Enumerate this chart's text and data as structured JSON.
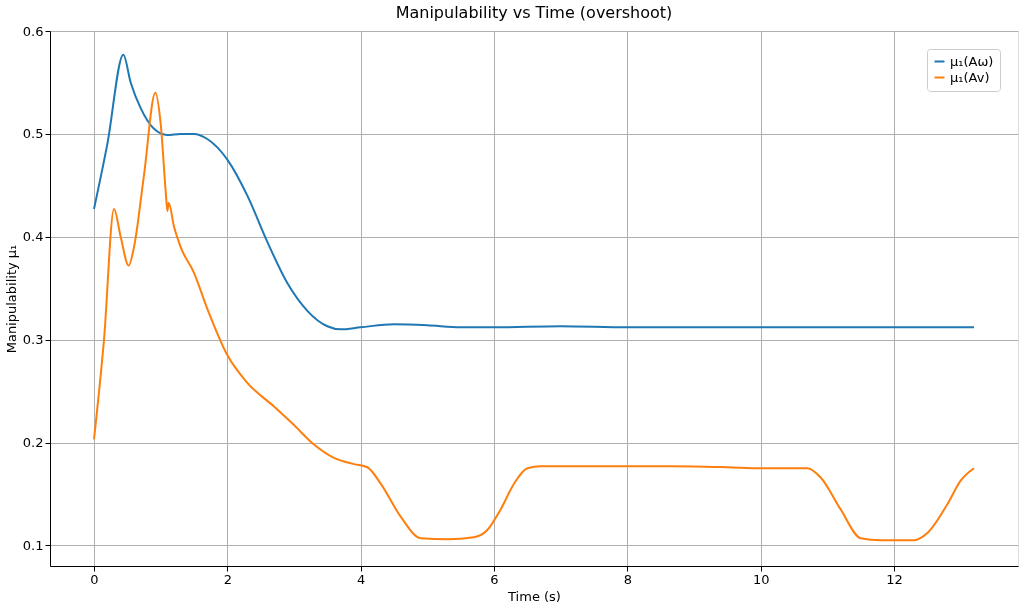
{
  "chart_data": {
    "type": "line",
    "title": "Manipulability vs Time  (overshoot)",
    "xlabel": "Time (s)",
    "ylabel": "Manipulability μ₁",
    "xlim": [
      -0.66,
      13.86
    ],
    "ylim": [
      0.08,
      0.6
    ],
    "xticks": [
      0,
      2,
      4,
      6,
      8,
      10,
      12
    ],
    "yticks": [
      0.1,
      0.2,
      0.3,
      0.4,
      0.5,
      0.6
    ],
    "grid": true,
    "legend": "top right",
    "line_style": "solid",
    "marker": "none",
    "series": [
      {
        "name": "μ₁(Aω)",
        "color": "#1f77b4",
        "x": [
          0,
          0.2,
          0.44,
          0.55,
          0.7,
          0.9,
          1.1,
          1.3,
          1.5,
          1.7,
          2.0,
          2.3,
          2.6,
          2.9,
          3.2,
          3.5,
          3.7,
          4.0,
          4.5,
          5.0,
          5.5,
          6,
          7,
          8,
          10,
          12,
          13.2
        ],
        "values": [
          0.427,
          0.49,
          0.577,
          0.55,
          0.525,
          0.505,
          0.499,
          0.5,
          0.5,
          0.495,
          0.475,
          0.44,
          0.395,
          0.355,
          0.328,
          0.313,
          0.31,
          0.312,
          0.315,
          0.314,
          0.312,
          0.312,
          0.313,
          0.312,
          0.312,
          0.312,
          0.312
        ]
      },
      {
        "name": "μ₁(Av)",
        "color": "#ff7f0e",
        "x": [
          0,
          0.15,
          0.3,
          0.4,
          0.52,
          0.6,
          0.75,
          0.92,
          1.0,
          1.08,
          1.1,
          1.12,
          1.2,
          1.3,
          1.5,
          1.7,
          2.0,
          2.3,
          2.7,
          3.0,
          3.3,
          3.6,
          3.9,
          4.1,
          4.3,
          4.6,
          4.9,
          5.3,
          5.7,
          5.9,
          6.1,
          6.3,
          6.5,
          6.7,
          8,
          8.7,
          9.5,
          10,
          10.7,
          10.9,
          11.2,
          11.5,
          11.8,
          12.3,
          12.5,
          12.8,
          13.0,
          13.2
        ],
        "values": [
          0.203,
          0.3,
          0.427,
          0.4,
          0.372,
          0.39,
          0.46,
          0.54,
          0.51,
          0.44,
          0.425,
          0.433,
          0.41,
          0.39,
          0.365,
          0.33,
          0.285,
          0.258,
          0.235,
          0.217,
          0.198,
          0.185,
          0.179,
          0.176,
          0.16,
          0.128,
          0.107,
          0.106,
          0.108,
          0.115,
          0.135,
          0.16,
          0.175,
          0.177,
          0.177,
          0.177,
          0.176,
          0.175,
          0.175,
          0.166,
          0.135,
          0.107,
          0.105,
          0.105,
          0.112,
          0.14,
          0.163,
          0.175
        ]
      }
    ]
  }
}
